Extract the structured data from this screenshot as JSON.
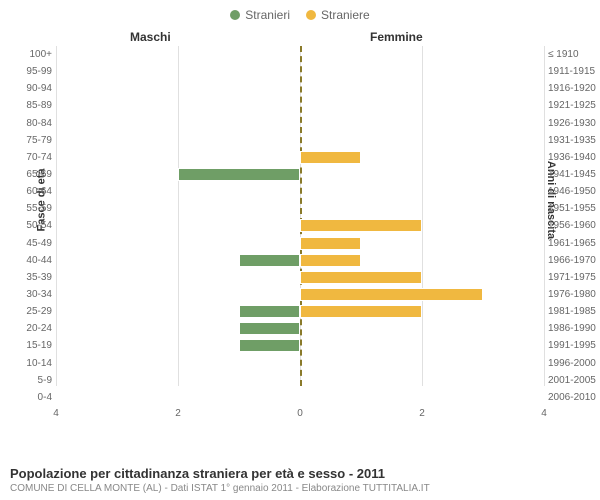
{
  "legend": {
    "male": {
      "label": "Stranieri",
      "color": "#6f9e66"
    },
    "female": {
      "label": "Straniere",
      "color": "#f0b840"
    }
  },
  "columns": {
    "male": "Maschi",
    "female": "Femmine"
  },
  "axis_labels": {
    "left": "Fasce di età",
    "right": "Anni di nascita"
  },
  "chart": {
    "type": "population-pyramid",
    "xmax": 4,
    "xticks_left": [
      4,
      2,
      0
    ],
    "xticks_right": [
      0,
      2,
      4
    ],
    "grid_color": "#e0e0e0",
    "center_line_color": "#8a7a2a",
    "bar_border": "#ffffff",
    "background_color": "#ffffff",
    "label_fontsize": 10,
    "title_fontsize": 12
  },
  "rows": [
    {
      "age": "100+",
      "birth": "≤ 1910",
      "m": 0,
      "f": 0
    },
    {
      "age": "95-99",
      "birth": "1911-1915",
      "m": 0,
      "f": 0
    },
    {
      "age": "90-94",
      "birth": "1916-1920",
      "m": 0,
      "f": 0
    },
    {
      "age": "85-89",
      "birth": "1921-1925",
      "m": 0,
      "f": 0
    },
    {
      "age": "80-84",
      "birth": "1926-1930",
      "m": 0,
      "f": 0
    },
    {
      "age": "75-79",
      "birth": "1931-1935",
      "m": 0,
      "f": 0
    },
    {
      "age": "70-74",
      "birth": "1936-1940",
      "m": 0,
      "f": 1
    },
    {
      "age": "65-69",
      "birth": "1941-1945",
      "m": 2,
      "f": 0
    },
    {
      "age": "60-64",
      "birth": "1946-1950",
      "m": 0,
      "f": 0
    },
    {
      "age": "55-59",
      "birth": "1951-1955",
      "m": 0,
      "f": 0
    },
    {
      "age": "50-54",
      "birth": "1956-1960",
      "m": 0,
      "f": 2
    },
    {
      "age": "45-49",
      "birth": "1961-1965",
      "m": 0,
      "f": 1
    },
    {
      "age": "40-44",
      "birth": "1966-1970",
      "m": 1,
      "f": 1
    },
    {
      "age": "35-39",
      "birth": "1971-1975",
      "m": 0,
      "f": 2
    },
    {
      "age": "30-34",
      "birth": "1976-1980",
      "m": 0,
      "f": 3
    },
    {
      "age": "25-29",
      "birth": "1981-1985",
      "m": 1,
      "f": 2
    },
    {
      "age": "20-24",
      "birth": "1986-1990",
      "m": 1,
      "f": 0
    },
    {
      "age": "15-19",
      "birth": "1991-1995",
      "m": 1,
      "f": 0
    },
    {
      "age": "10-14",
      "birth": "1996-2000",
      "m": 0,
      "f": 0
    },
    {
      "age": "5-9",
      "birth": "2001-2005",
      "m": 0,
      "f": 0
    },
    {
      "age": "0-4",
      "birth": "2006-2010",
      "m": 0,
      "f": 0
    }
  ],
  "footer": {
    "title": "Popolazione per cittadinanza straniera per età e sesso - 2011",
    "subtitle": "COMUNE DI CELLA MONTE (AL) - Dati ISTAT 1° gennaio 2011 - Elaborazione TUTTITALIA.IT"
  }
}
